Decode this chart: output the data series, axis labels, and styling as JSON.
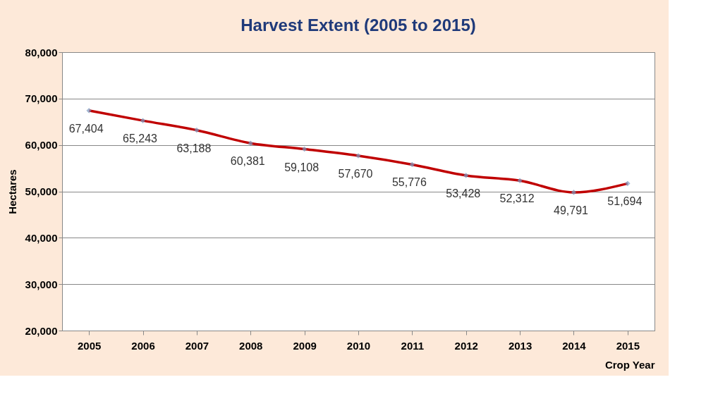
{
  "chart_data": {
    "type": "line",
    "title": "Harvest Extent (2005 to 2015)",
    "xlabel": "Crop Year",
    "ylabel": "Hectares",
    "categories": [
      "2005",
      "2006",
      "2007",
      "2008",
      "2009",
      "2010",
      "2011",
      "2012",
      "2013",
      "2014",
      "2015"
    ],
    "series": [
      {
        "color": "#c00000",
        "values": [
          67404,
          65243,
          63188,
          60381,
          59108,
          57670,
          55776,
          53428,
          52312,
          49791,
          51694
        ]
      }
    ],
    "ylim": [
      20000,
      80000
    ],
    "yticks": [
      {
        "value": 20000,
        "label": "20,000"
      },
      {
        "value": 30000,
        "label": "30,000"
      },
      {
        "value": 40000,
        "label": "40,000"
      },
      {
        "value": 50000,
        "label": "50,000"
      },
      {
        "value": 60000,
        "label": "60,000"
      },
      {
        "value": 70000,
        "label": "70,000"
      },
      {
        "value": 80000,
        "label": "80,000"
      }
    ],
    "value_labels": [
      "67,404",
      "65,243",
      "63,188",
      "60,381",
      "59,108",
      "57,670",
      "55,776",
      "53,428",
      "52,312",
      "49,791",
      "51,694"
    ],
    "grid": "y",
    "legend": false,
    "marker": "diamond",
    "line_style": "solid"
  }
}
